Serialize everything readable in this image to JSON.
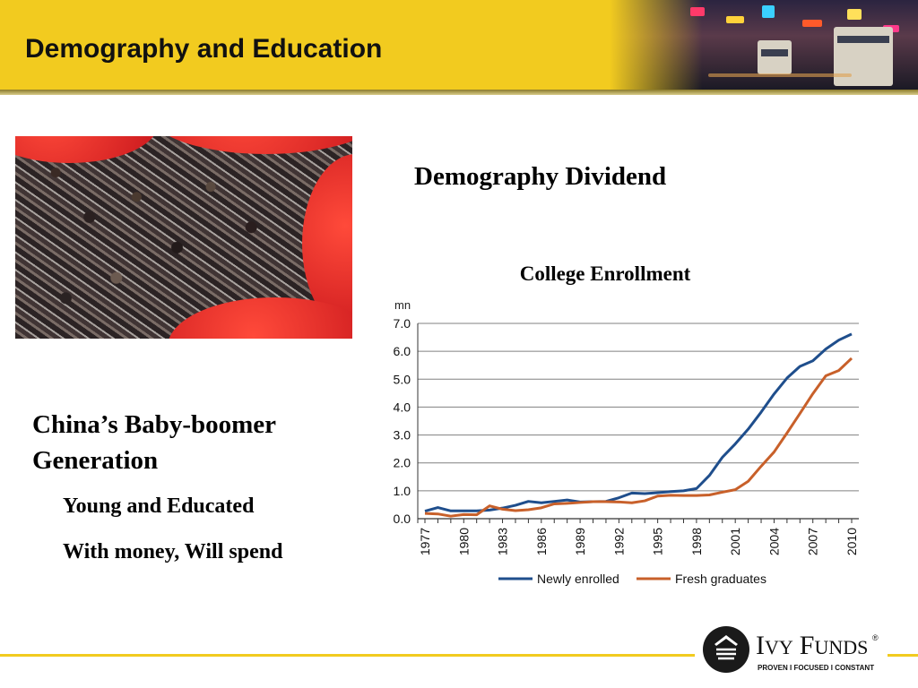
{
  "header": {
    "title": "Demography and Education"
  },
  "left": {
    "heading": "China’s Baby-boomer Generation",
    "heading_line1": "China’s Baby-boomer",
    "heading_line2": "Generation",
    "point1": "Young and Educated",
    "point2": "With money, Will spend"
  },
  "right": {
    "heading": "Demography Dividend"
  },
  "logo": {
    "brand": "IVY FUNDS",
    "brand_first": "I",
    "brand_rest_vy": "VY",
    "brand_f": "F",
    "brand_unds": "UNDS",
    "registered": "®",
    "tagline": "PROVEN  I  FOCUSED  I  CONSTANT"
  },
  "colors": {
    "header_yellow": "#f2cb1f",
    "series_blue": "#1f4e8c",
    "series_orange": "#c8602a",
    "gridline": "#808080"
  },
  "chart_data": {
    "type": "line",
    "title": "College Enrollment",
    "ylabel": "mn",
    "xlabel": "",
    "ylim": [
      0,
      7
    ],
    "yticks": [
      "0.0",
      "1.0",
      "2.0",
      "3.0",
      "4.0",
      "5.0",
      "6.0",
      "7.0"
    ],
    "x": [
      1977,
      1978,
      1979,
      1980,
      1981,
      1982,
      1983,
      1984,
      1985,
      1986,
      1987,
      1988,
      1989,
      1990,
      1991,
      1992,
      1993,
      1994,
      1995,
      1996,
      1997,
      1998,
      1999,
      2000,
      2001,
      2002,
      2003,
      2004,
      2005,
      2006,
      2007,
      2008,
      2009,
      2010
    ],
    "xticks": [
      "1977",
      "1980",
      "1983",
      "1986",
      "1989",
      "1992",
      "1995",
      "1998",
      "2001",
      "2004",
      "2007",
      "2010"
    ],
    "grid": true,
    "legend": "bottom",
    "series": [
      {
        "name": "Newly enrolled",
        "color": "#1f4e8c",
        "values": [
          0.27,
          0.4,
          0.28,
          0.28,
          0.28,
          0.31,
          0.38,
          0.48,
          0.62,
          0.57,
          0.62,
          0.67,
          0.6,
          0.61,
          0.62,
          0.75,
          0.92,
          0.9,
          0.93,
          0.97,
          1.0,
          1.08,
          1.55,
          2.2,
          2.68,
          3.21,
          3.82,
          4.47,
          5.04,
          5.46,
          5.66,
          6.08,
          6.4,
          6.62
        ]
      },
      {
        "name": "Fresh graduates",
        "color": "#c8602a",
        "values": [
          0.19,
          0.17,
          0.09,
          0.15,
          0.14,
          0.46,
          0.34,
          0.29,
          0.32,
          0.39,
          0.53,
          0.55,
          0.58,
          0.61,
          0.61,
          0.6,
          0.57,
          0.64,
          0.81,
          0.84,
          0.83,
          0.83,
          0.85,
          0.95,
          1.04,
          1.34,
          1.88,
          2.39,
          3.07,
          3.77,
          4.48,
          5.12,
          5.31,
          5.75
        ]
      }
    ]
  }
}
